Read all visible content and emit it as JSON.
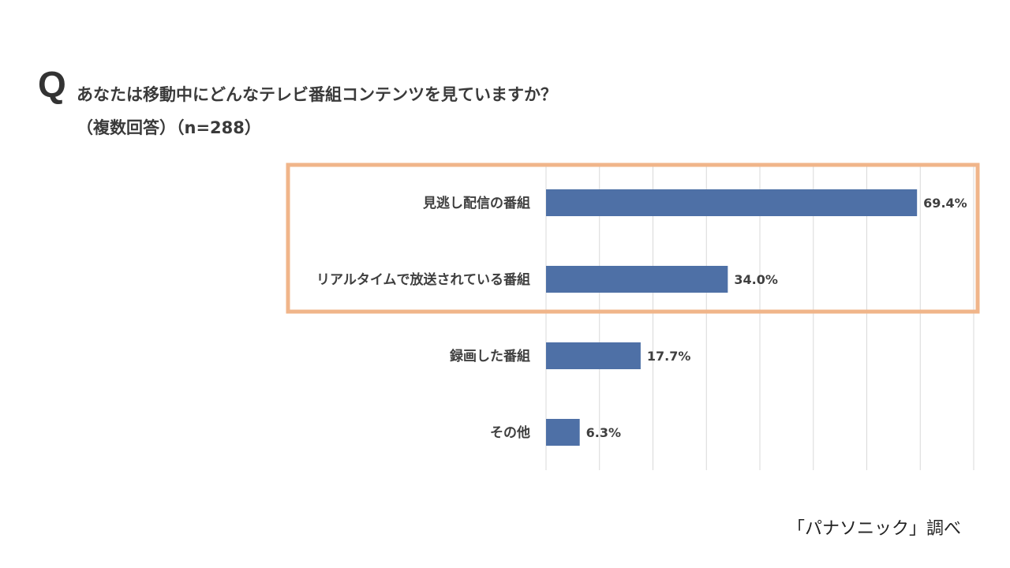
{
  "question": {
    "mark": "Q",
    "text": "あなたは移動中にどんなテレビ番組コンテンツを見ていますか？",
    "sub": "（複数回答）（n=288）"
  },
  "source": "「パナソニック」調べ",
  "colors": {
    "bar": "#4e70a6",
    "highlight": "#f0b58a",
    "grid": "#d9d9d9",
    "label": "#3f3f3f"
  },
  "chart_data": {
    "type": "bar",
    "orientation": "horizontal",
    "categories": [
      "見逃し配信の番組",
      "リアルタイムで放送されている番組",
      "録画した番組",
      "その他"
    ],
    "values": [
      69.4,
      34.0,
      17.7,
      6.3
    ],
    "value_labels": [
      "69.4%",
      "34.0%",
      "17.7%",
      "6.3%"
    ],
    "xlim": [
      0,
      80
    ],
    "grid": true,
    "highlighted_categories": [
      "見逃し配信の番組",
      "リアルタイムで放送されている番組"
    ]
  }
}
